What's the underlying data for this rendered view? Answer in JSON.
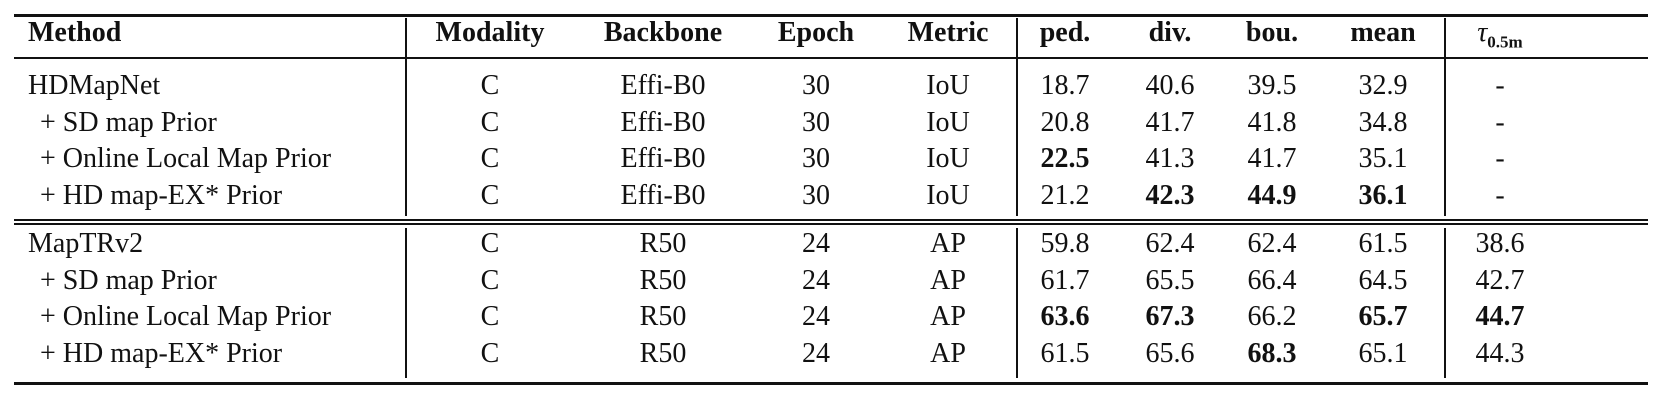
{
  "table": {
    "header": [
      "Method",
      "Modality",
      "Backbone",
      "Epoch",
      "Metric",
      "ped.",
      "div.",
      "bou.",
      "mean",
      {
        "symbol": "τ",
        "subscript": "0.5m"
      }
    ],
    "groups": [
      {
        "rows": [
          {
            "cells": [
              "HDMapNet",
              "C",
              "Effi-B0",
              "30",
              "IoU",
              "18.7",
              "40.6",
              "39.5",
              "32.9",
              "-"
            ]
          },
          {
            "cells": [
              "+ SD map Prior",
              "C",
              "Effi-B0",
              "30",
              "IoU",
              "20.8",
              "41.7",
              "41.8",
              "34.8",
              "-"
            ]
          },
          {
            "cells": [
              "+ Online Local Map Prior",
              "C",
              "Effi-B0",
              "30",
              "IoU",
              "22.5",
              "41.3",
              "41.7",
              "35.1",
              "-"
            ],
            "bold": [
              5
            ]
          },
          {
            "cells": [
              "+ HD map-EX* Prior",
              "C",
              "Effi-B0",
              "30",
              "IoU",
              "21.2",
              "42.3",
              "44.9",
              "36.1",
              "-"
            ],
            "bold": [
              6,
              7,
              8
            ]
          }
        ]
      },
      {
        "rows": [
          {
            "cells": [
              "MapTRv2",
              "C",
              "R50",
              "24",
              "AP",
              "59.8",
              "62.4",
              "62.4",
              "61.5",
              "38.6"
            ]
          },
          {
            "cells": [
              "+ SD map Prior",
              "C",
              "R50",
              "24",
              "AP",
              "61.7",
              "65.5",
              "66.4",
              "64.5",
              "42.7"
            ]
          },
          {
            "cells": [
              "+ Online Local Map Prior",
              "C",
              "R50",
              "24",
              "AP",
              "63.6",
              "67.3",
              "66.2",
              "65.7",
              "44.7"
            ],
            "bold": [
              5,
              6,
              8,
              9
            ]
          },
          {
            "cells": [
              "+ HD map-EX* Prior",
              "C",
              "R50",
              "24",
              "AP",
              "61.5",
              "65.6",
              "68.3",
              "65.1",
              "44.3"
            ],
            "bold": [
              7
            ]
          }
        ]
      }
    ]
  }
}
